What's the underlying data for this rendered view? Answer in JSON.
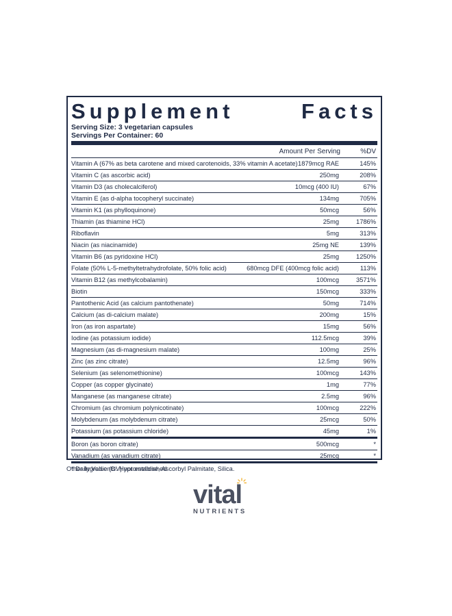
{
  "panel": {
    "title_left": "Supplement",
    "title_right": "Facts",
    "serving_size": "Serving Size: 3 vegetarian capsules",
    "servings_per_container": "Servings Per Container: 60",
    "col_amount": "Amount Per Serving",
    "col_dv": "%DV",
    "rows": [
      {
        "name": "Vitamin A (67% as beta carotene and mixed carotenoids, 33% vitamin A acetate)",
        "amount": "1879mcg RAE",
        "dv": "145%"
      },
      {
        "name": "Vitamin C (as ascorbic acid)",
        "amount": "250mg",
        "dv": "208%"
      },
      {
        "name": "Vitamin D3 (as cholecalciferol)",
        "amount": "10mcg (400 IU)",
        "dv": "67%"
      },
      {
        "name": "Vitamin E (as d-alpha tocopheryl succinate)",
        "amount": "134mg",
        "dv": "705%"
      },
      {
        "name": "Vitamin K1 (as phylloquinone)",
        "amount": "50mcg",
        "dv": "56%"
      },
      {
        "name": "Thiamin (as thiamine HCl)",
        "amount": "25mg",
        "dv": "1786%"
      },
      {
        "name": "Riboflavin",
        "amount": "5mg",
        "dv": "313%"
      },
      {
        "name": "Niacin (as niacinamide)",
        "amount": "25mg NE",
        "dv": "139%"
      },
      {
        "name": "Vitamin B6 (as pyridoxine HCl)",
        "amount": "25mg",
        "dv": "1250%"
      },
      {
        "name": "Folate (50% L-5-methyltetrahydrofolate, 50% folic acid)",
        "amount": "680mcg DFE (400mcg folic acid)",
        "dv": "113%"
      },
      {
        "name": "Vitamin B12 (as methylcobalamin)",
        "amount": "100mcg",
        "dv": "3571%"
      },
      {
        "name": "Biotin",
        "amount": "150mcg",
        "dv": "333%"
      },
      {
        "name": "Pantothenic Acid (as calcium pantothenate)",
        "amount": "50mg",
        "dv": "714%"
      },
      {
        "name": "Calcium (as di-calcium malate)",
        "amount": "200mg",
        "dv": "15%"
      },
      {
        "name": "Iron (as iron aspartate)",
        "amount": "15mg",
        "dv": "56%"
      },
      {
        "name": "Iodine (as potassium iodide)",
        "amount": "112.5mcg",
        "dv": "39%"
      },
      {
        "name": "Magnesium (as di-magnesium malate)",
        "amount": "100mg",
        "dv": "25%"
      },
      {
        "name": "Zinc (as zinc citrate)",
        "amount": "12.5mg",
        "dv": "96%"
      },
      {
        "name": "Selenium (as selenomethionine)",
        "amount": "100mcg",
        "dv": "143%"
      },
      {
        "name": "Copper (as copper glycinate)",
        "amount": "1mg",
        "dv": "77%"
      },
      {
        "name": "Manganese (as manganese citrate)",
        "amount": "2.5mg",
        "dv": "96%"
      },
      {
        "name": "Chromium (as chromium polynicotinate)",
        "amount": "100mcg",
        "dv": "222%"
      },
      {
        "name": "Molybdenum (as molybdenum citrate)",
        "amount": "25mcg",
        "dv": "50%"
      },
      {
        "name": "Potassium (as potassium chloride)",
        "amount": "45mg",
        "dv": "1%"
      }
    ],
    "extra_rows": [
      {
        "name": "Boron (as boron citrate)",
        "amount": "500mcg",
        "dv": "*"
      },
      {
        "name": "Vanadium (as vanadium citrate)",
        "amount": "25mcg",
        "dv": "*"
      }
    ],
    "footnote": "* Daily Value (DV) not established"
  },
  "other_ingredients": "Other Ingredients: Hypromellose, Ascorbyl Palmitate, Silica.",
  "logo": {
    "word": "vital",
    "sub": "NUTRIENTS",
    "text_color": "#4a5060",
    "accent_color": "#f2b53a",
    "icon": "sun-icon"
  },
  "colors": {
    "panel_ink": "#1f2a44"
  }
}
